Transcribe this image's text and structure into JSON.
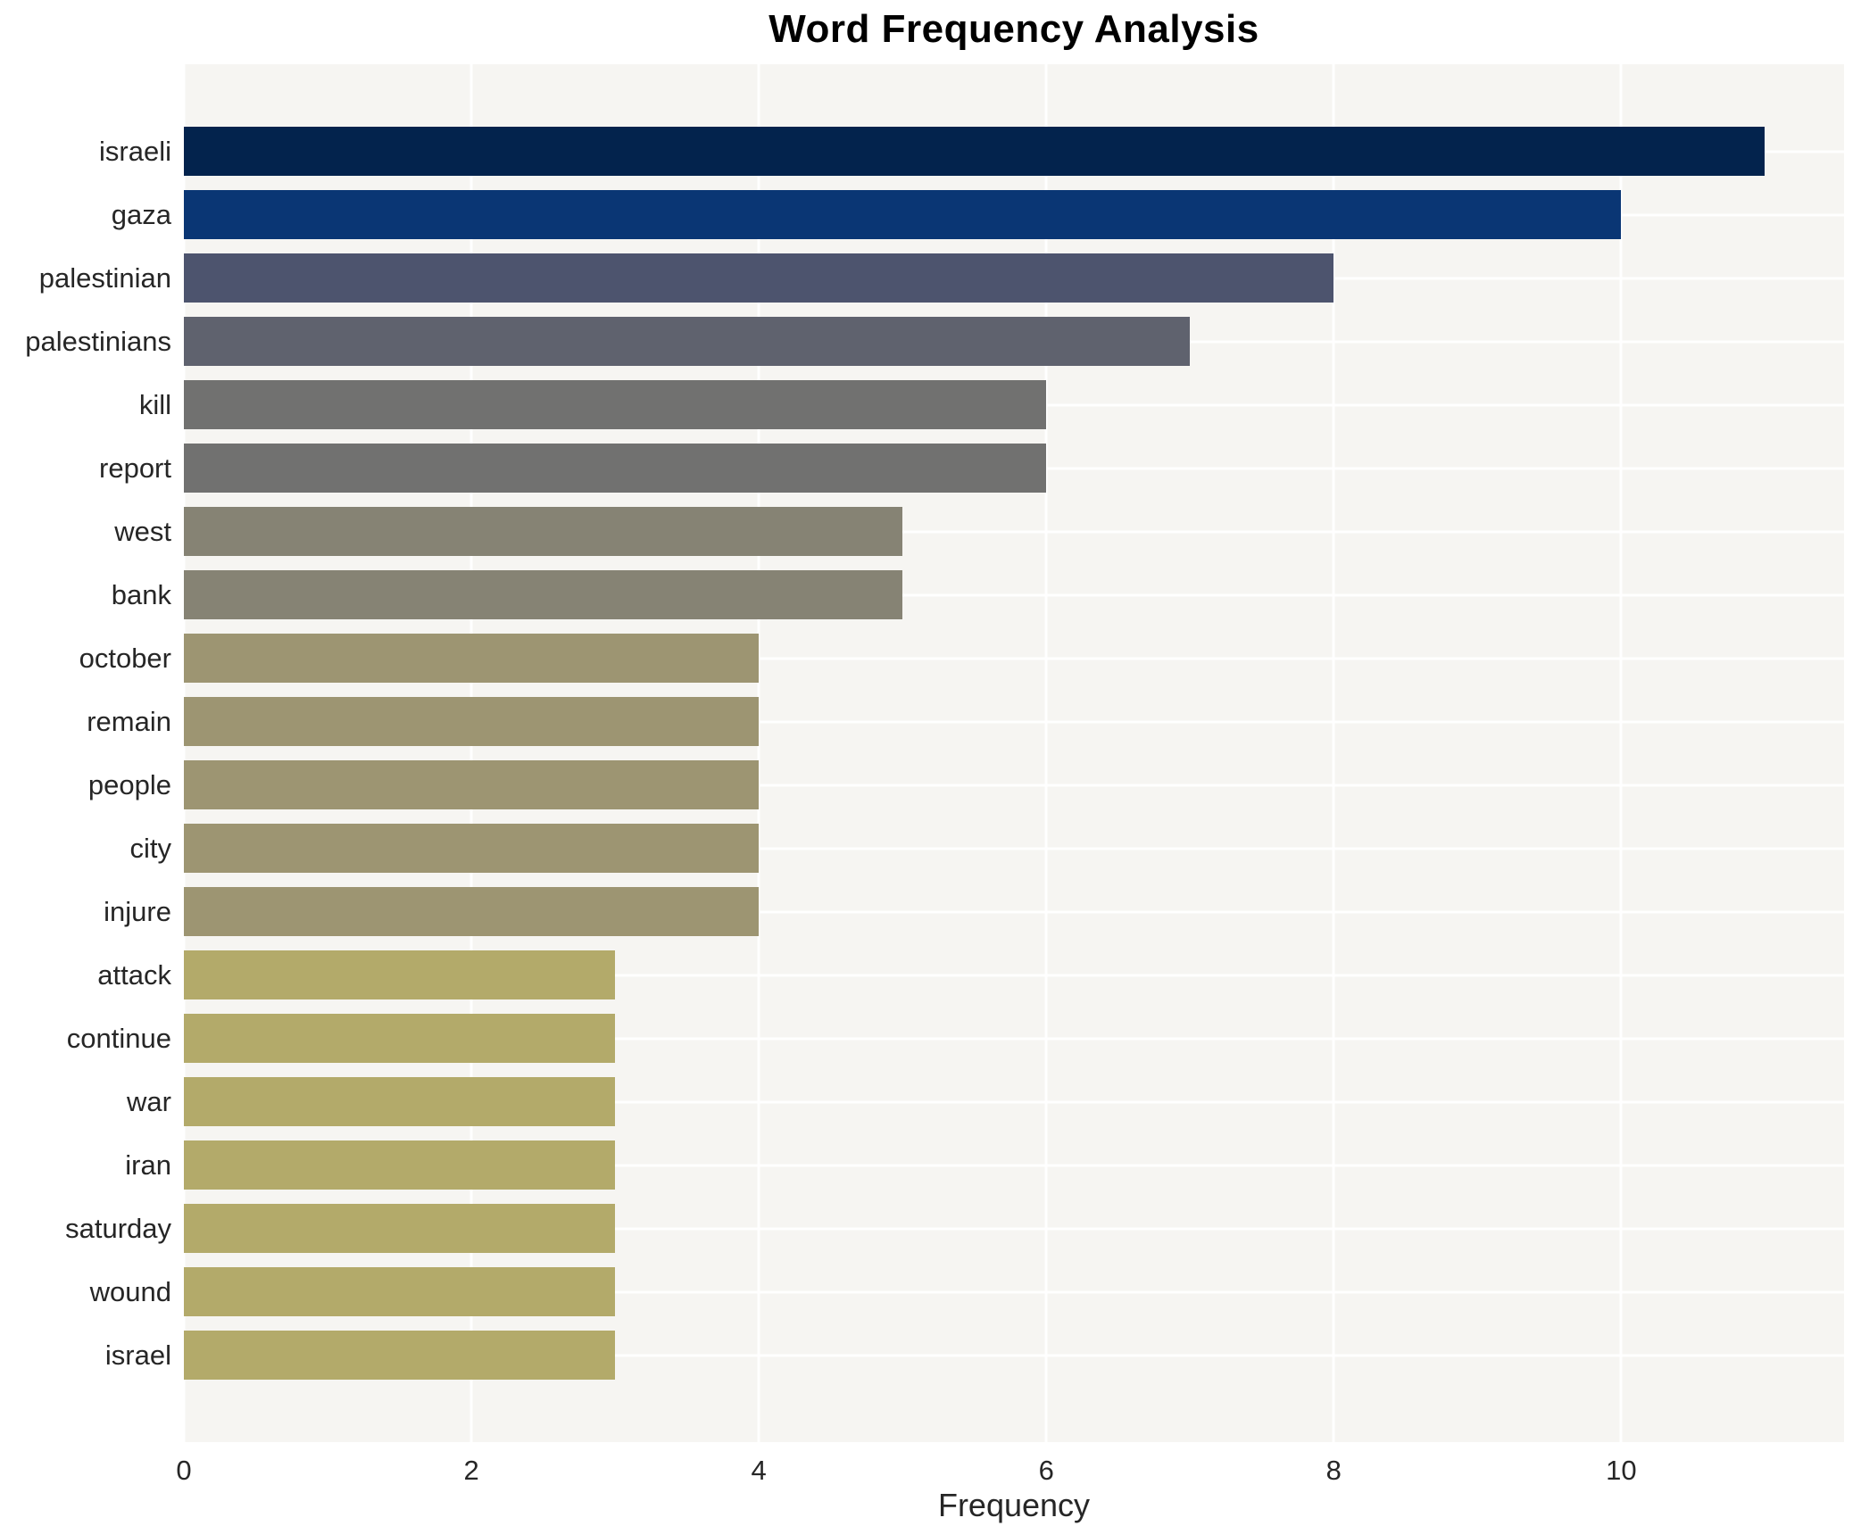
{
  "chart_data": {
    "type": "bar",
    "orientation": "horizontal",
    "title": "Word Frequency Analysis",
    "xlabel": "Frequency",
    "ylabel": "",
    "categories": [
      "israeli",
      "gaza",
      "palestinian",
      "palestinians",
      "kill",
      "report",
      "west",
      "bank",
      "october",
      "remain",
      "people",
      "city",
      "injure",
      "attack",
      "continue",
      "war",
      "iran",
      "saturday",
      "wound",
      "israel"
    ],
    "values": [
      11,
      10,
      8,
      7,
      6,
      6,
      5,
      5,
      4,
      4,
      4,
      4,
      4,
      3,
      3,
      3,
      3,
      3,
      3,
      3
    ],
    "bar_colors": [
      "#03234d",
      "#0a3674",
      "#4d546e",
      "#5f626e",
      "#717170",
      "#717170",
      "#868374",
      "#868374",
      "#9d9572",
      "#9d9572",
      "#9d9572",
      "#9d9572",
      "#9d9572",
      "#b3aa6a",
      "#b3aa6a",
      "#b3aa6a",
      "#b3aa6a",
      "#b3aa6a",
      "#b3aa6a",
      "#b3aa6a"
    ],
    "xlim": [
      0,
      11.55
    ],
    "xticks": [
      0,
      2,
      4,
      6,
      8,
      10
    ],
    "grid": true,
    "legend": false,
    "plot_bg": "#f6f5f2",
    "grid_color": "#ffffff",
    "text_color": "#262626",
    "title_color": "#000000"
  }
}
